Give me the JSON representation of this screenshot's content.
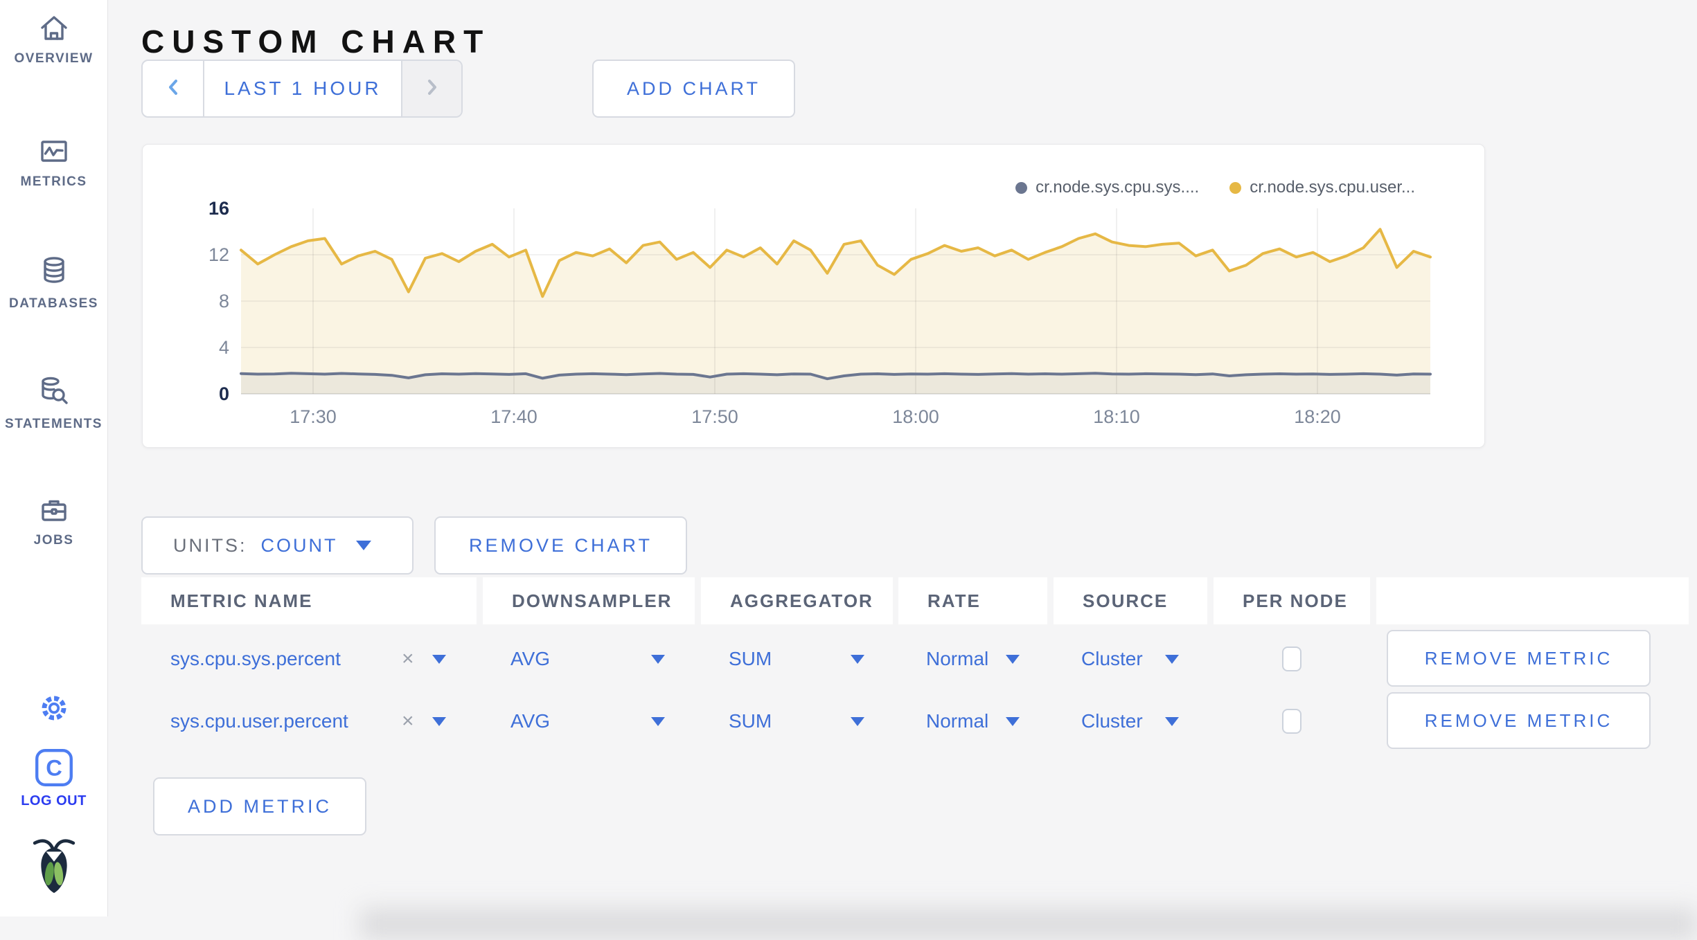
{
  "sidebar": {
    "items": [
      {
        "label": "OVERVIEW"
      },
      {
        "label": "METRICS"
      },
      {
        "label": "DATABASES"
      },
      {
        "label": "STATEMENTS"
      },
      {
        "label": "JOBS"
      }
    ],
    "logout_label": "LOG OUT"
  },
  "header": {
    "title": "CUSTOM CHART"
  },
  "time_selector": {
    "range_label": "LAST 1 HOUR"
  },
  "toolbar": {
    "add_chart_label": "ADD CHART"
  },
  "chart_controls": {
    "units_caption": "UNITS:",
    "units_value": "COUNT",
    "remove_chart_label": "REMOVE CHART",
    "add_metric_label": "ADD METRIC",
    "remove_metric_label": "REMOVE METRIC"
  },
  "table": {
    "headers": [
      "METRIC NAME",
      "DOWNSAMPLER",
      "AGGREGATOR",
      "RATE",
      "SOURCE",
      "PER NODE"
    ],
    "rows": [
      {
        "metric": "sys.cpu.sys.percent",
        "downsampler": "AVG",
        "aggregator": "SUM",
        "rate": "Normal",
        "source": "Cluster",
        "per_node": false
      },
      {
        "metric": "sys.cpu.user.percent",
        "downsampler": "AVG",
        "aggregator": "SUM",
        "rate": "Normal",
        "source": "Cluster",
        "per_node": false
      }
    ]
  },
  "colors": {
    "accent_blue": "#3e6fd8",
    "logout_blue": "#2b3cf0",
    "sidebar_icon": "#5e6b87",
    "disabled_chevron": "#b8bec9",
    "prev_chevron": "#6ba6e8"
  },
  "chart_data": {
    "type": "line",
    "title": "",
    "xlabel": "",
    "ylabel": "",
    "ylim": [
      0,
      16
    ],
    "y_ticks": [
      0,
      4,
      8,
      12,
      16
    ],
    "x_ticks": [
      "17:30",
      "17:40",
      "17:50",
      "18:00",
      "18:10",
      "18:20"
    ],
    "x_range": [
      "17:26",
      "18:26"
    ],
    "grid": true,
    "legend_position": "top-right",
    "series": [
      {
        "name": "cr.node.sys.cpu.sys....",
        "color": "#6b7690",
        "fill": "#ece8dc",
        "values": [
          1.75,
          1.7,
          1.72,
          1.78,
          1.74,
          1.7,
          1.76,
          1.72,
          1.68,
          1.6,
          1.38,
          1.65,
          1.73,
          1.7,
          1.75,
          1.72,
          1.68,
          1.74,
          1.35,
          1.62,
          1.7,
          1.74,
          1.7,
          1.66,
          1.72,
          1.76,
          1.7,
          1.68,
          1.45,
          1.7,
          1.74,
          1.7,
          1.65,
          1.72,
          1.7,
          1.3,
          1.55,
          1.7,
          1.73,
          1.68,
          1.72,
          1.7,
          1.74,
          1.7,
          1.68,
          1.72,
          1.75,
          1.7,
          1.73,
          1.7,
          1.74,
          1.78,
          1.72,
          1.7,
          1.74,
          1.72,
          1.7,
          1.66,
          1.72,
          1.55,
          1.65,
          1.7,
          1.73,
          1.7,
          1.72,
          1.68,
          1.7,
          1.74,
          1.7,
          1.62,
          1.72,
          1.7
        ]
      },
      {
        "name": "cr.node.sys.cpu.user...",
        "color": "#e6b845",
        "fill": "#faf4e3",
        "values": [
          12.4,
          11.2,
          12.0,
          12.7,
          13.2,
          13.4,
          11.2,
          11.9,
          12.3,
          11.6,
          8.8,
          11.7,
          12.1,
          11.4,
          12.3,
          12.9,
          11.8,
          12.4,
          8.4,
          11.5,
          12.2,
          11.9,
          12.5,
          11.3,
          12.8,
          13.1,
          11.6,
          12.2,
          10.9,
          12.4,
          11.8,
          12.6,
          11.2,
          13.2,
          12.4,
          10.4,
          12.9,
          13.2,
          11.1,
          10.3,
          11.6,
          12.1,
          12.8,
          12.3,
          12.6,
          11.9,
          12.4,
          11.6,
          12.2,
          12.7,
          13.4,
          13.8,
          13.1,
          12.8,
          12.7,
          12.9,
          13.0,
          11.9,
          12.4,
          10.6,
          11.1,
          12.1,
          12.5,
          11.8,
          12.2,
          11.4,
          11.9,
          12.6,
          14.2,
          10.9,
          12.3,
          11.8
        ]
      }
    ]
  }
}
